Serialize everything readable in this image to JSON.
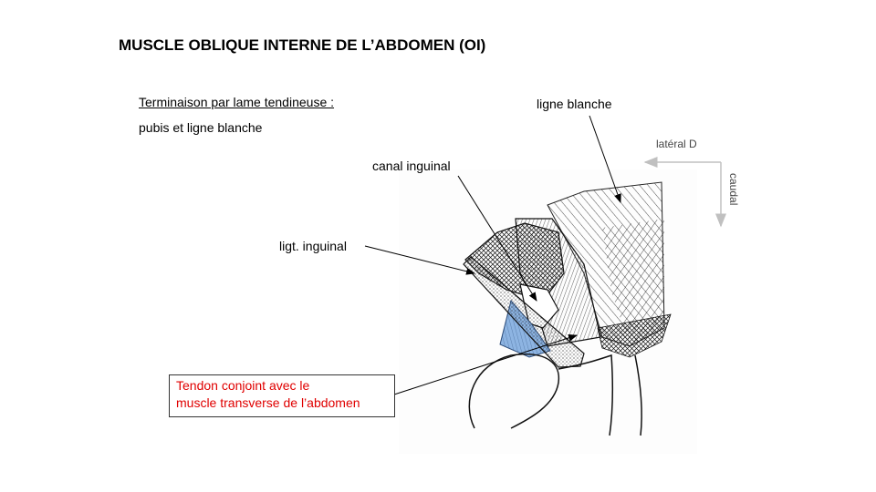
{
  "title": "MUSCLE OBLIQUE INTERNE DE L’ABDOMEN (OI)",
  "subtitle": "Terminaison par lame tendineuse :",
  "subtitle_line": "pubis et ligne blanche",
  "labels": {
    "ligne_blanche": "ligne blanche",
    "lateral": "latéral D",
    "caudal": "caudal",
    "canal_inguinal": "canal inguinal",
    "ligt_inguinal": "ligt. inguinal",
    "tendon_line1": "Tendon conjoint avec le",
    "tendon_line2": "muscle transverse  de l’abdomen"
  },
  "colors": {
    "tendon_text": "#e00000",
    "conjoint_fill": "#8db4e2",
    "orientation_arrow": "#c0c0c0"
  }
}
